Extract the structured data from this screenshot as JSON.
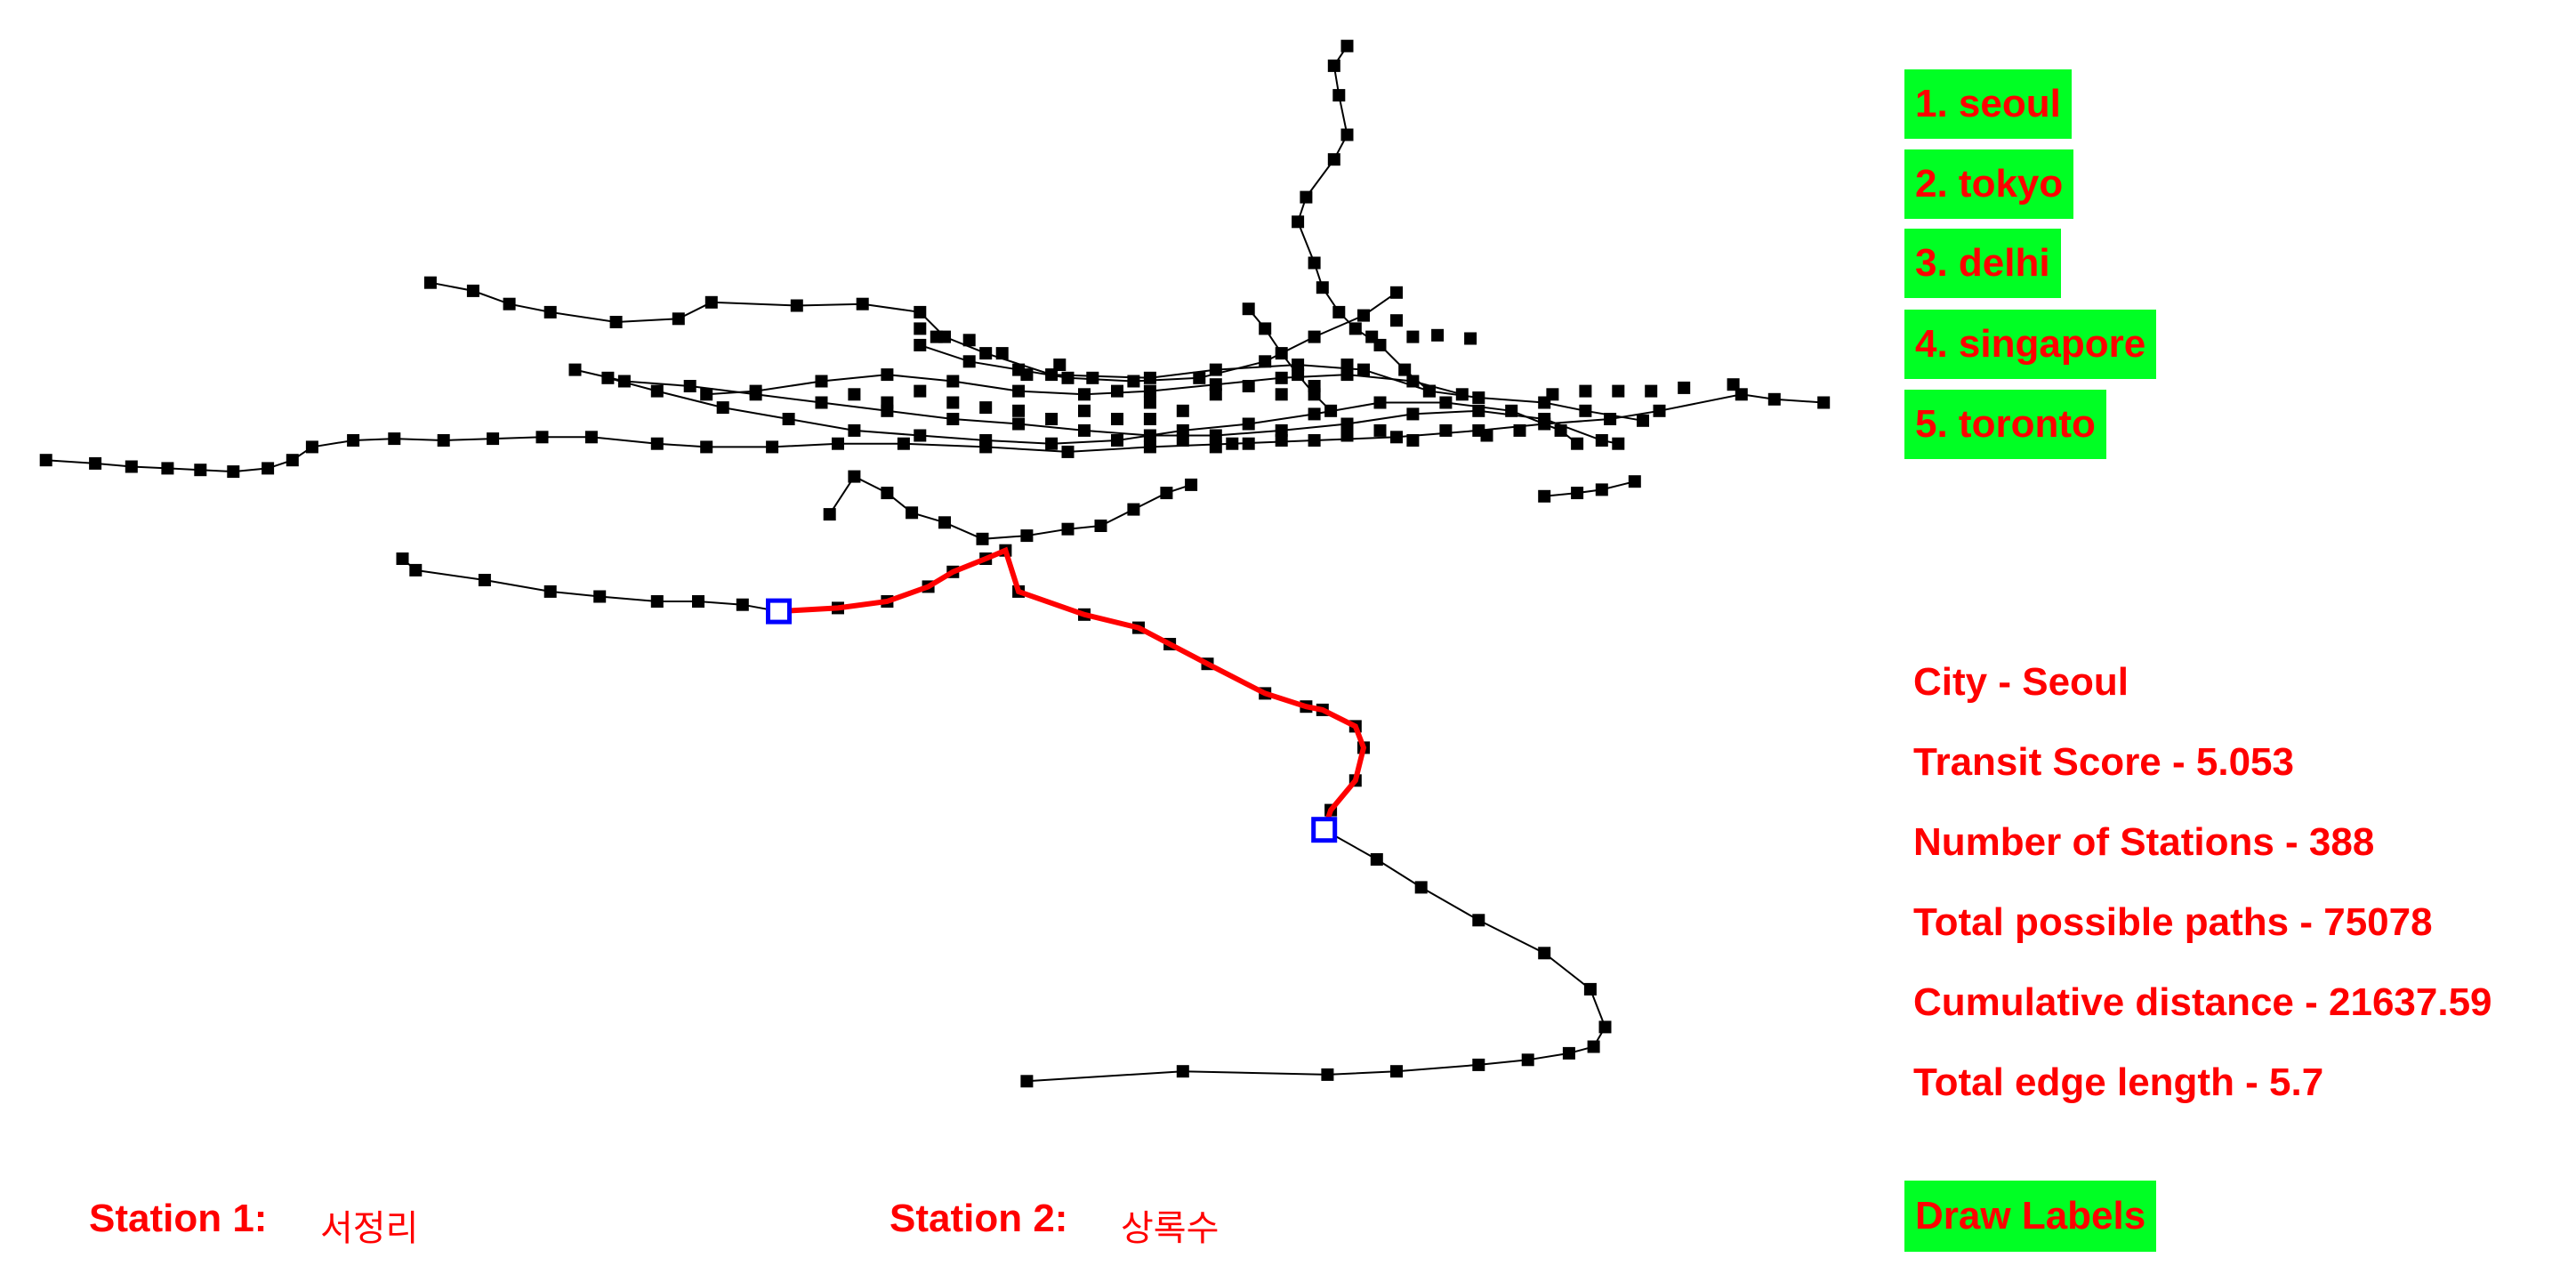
{
  "cities": [
    "1. seoul",
    "2. tokyo",
    "3. delhi",
    "4. singapore",
    "5. toronto"
  ],
  "stats": {
    "city": "City - Seoul",
    "transit_score": "Transit Score - 5.053",
    "num_stations": "Number of Stations - 388",
    "total_paths": "Total possible paths - 75078",
    "cumulative_distance": "Cumulative distance - 21637.59",
    "edge_length": "Total edge length - 5.7"
  },
  "stations": {
    "station1_label": "Station 1:",
    "station1_value": "서정리",
    "station2_label": "Station 2:",
    "station2_value": "상록수"
  },
  "draw_labels": "Draw Labels",
  "colors": {
    "button_bg": "#00ff24",
    "text": "#ff0000",
    "station_node": "#000000",
    "path": "#ff0000",
    "endpoint": "#0000ff"
  }
}
